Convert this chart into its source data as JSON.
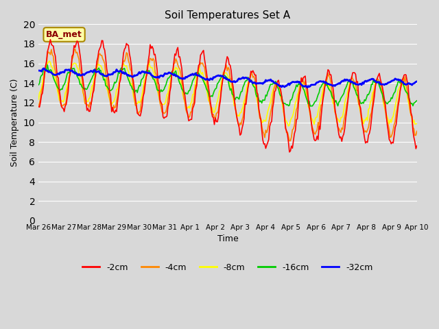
{
  "title": "Soil Temperatures Set A",
  "xlabel": "Time",
  "ylabel": "Soil Temperature (C)",
  "ylim": [
    0,
    20
  ],
  "yticks": [
    0,
    2,
    4,
    6,
    8,
    10,
    12,
    14,
    16,
    18,
    20
  ],
  "xtick_labels": [
    "Mar 26",
    "Mar 27",
    "Mar 28",
    "Mar 29",
    "Mar 30",
    "Mar 31",
    "Apr 1",
    "Apr 2",
    "Apr 3",
    "Apr 4",
    "Apr 5",
    "Apr 6",
    "Apr 7",
    "Apr 8",
    "Apr 9",
    "Apr 10"
  ],
  "series_colors": {
    "-2cm": "#ff0000",
    "-4cm": "#ff8800",
    "-8cm": "#ffff00",
    "-16cm": "#00cc00",
    "-32cm": "#0000ff"
  },
  "legend_label": "BA_met",
  "legend_box_color": "#ffffaa",
  "legend_box_edge": "#aa8800",
  "plot_bg_color": "#d8d8d8",
  "n_points": 384
}
